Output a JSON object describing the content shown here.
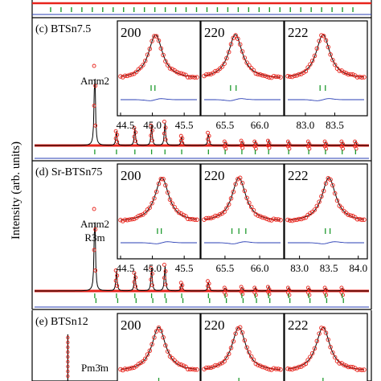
{
  "figure": {
    "ylabel": "Intensity (arb. units)"
  },
  "colors": {
    "observed": "#e8241c",
    "calculated": "#000000",
    "difference": "#2a3fb5",
    "reflection_primary": "#1f9a2e",
    "reflection_secondary": "#1f9a2e",
    "frame": "#000000"
  },
  "chart_data": [
    {
      "type": "line",
      "panel": "b",
      "label": "",
      "series": [
        {
          "name": "",
          "role": "reflections",
          "x": [
            1,
            2,
            3,
            4,
            5,
            6,
            7,
            8,
            9,
            10,
            11,
            12,
            13,
            14,
            15,
            16,
            17,
            18,
            19,
            20,
            21,
            22,
            23,
            24,
            25,
            26,
            27,
            28,
            29,
            30
          ]
        }
      ]
    },
    {
      "type": "line",
      "panel": "c",
      "label": "(c) BTSn7.5",
      "phases": [
        "Amm2"
      ],
      "main_pattern": {
        "peaks": [
          {
            "x": 0.18,
            "h": 1.0
          },
          {
            "x": 0.245,
            "h": 0.18
          },
          {
            "x": 0.3,
            "h": 0.22
          },
          {
            "x": 0.35,
            "h": 0.25
          },
          {
            "x": 0.39,
            "h": 0.3
          },
          {
            "x": 0.44,
            "h": 0.12
          },
          {
            "x": 0.52,
            "h": 0.16
          },
          {
            "x": 0.57,
            "h": 0.05
          },
          {
            "x": 0.62,
            "h": 0.06
          },
          {
            "x": 0.66,
            "h": 0.05
          },
          {
            "x": 0.7,
            "h": 0.06
          },
          {
            "x": 0.76,
            "h": 0.05
          },
          {
            "x": 0.82,
            "h": 0.05
          },
          {
            "x": 0.87,
            "h": 0.05
          },
          {
            "x": 0.92,
            "h": 0.05
          },
          {
            "x": 0.96,
            "h": 0.05
          }
        ]
      },
      "insets": [
        {
          "hkl": "200",
          "ticks": [
            "44.5",
            "45.0",
            "45.5"
          ],
          "xrange": [
            44.5,
            45.7
          ],
          "peaks": [
            45.05
          ],
          "reflections": [
            44.98,
            45.04
          ]
        },
        {
          "hkl": "220",
          "ticks": [
            "65.5",
            "66.0"
          ],
          "xrange": [
            65.2,
            66.3
          ],
          "peaks": [
            65.65
          ],
          "reflections": [
            65.58,
            65.66
          ]
        },
        {
          "hkl": "222",
          "ticks": [
            "83.0",
            "83.5"
          ],
          "xrange": [
            82.7,
            84.0
          ],
          "peaks": [
            83.3
          ],
          "reflections": [
            83.25,
            83.34
          ]
        }
      ]
    },
    {
      "type": "line",
      "panel": "d",
      "label": "(d) Sr-BTSn75",
      "phases": [
        "Amm2",
        "R3m"
      ],
      "main_pattern": {
        "peaks": [
          {
            "x": 0.18,
            "h": 1.0
          },
          {
            "x": 0.245,
            "h": 0.25
          },
          {
            "x": 0.3,
            "h": 0.22
          },
          {
            "x": 0.35,
            "h": 0.28
          },
          {
            "x": 0.39,
            "h": 0.32
          },
          {
            "x": 0.44,
            "h": 0.1
          },
          {
            "x": 0.52,
            "h": 0.12
          },
          {
            "x": 0.57,
            "h": 0.04
          },
          {
            "x": 0.62,
            "h": 0.05
          },
          {
            "x": 0.66,
            "h": 0.04
          },
          {
            "x": 0.7,
            "h": 0.05
          },
          {
            "x": 0.76,
            "h": 0.04
          },
          {
            "x": 0.82,
            "h": 0.04
          },
          {
            "x": 0.87,
            "h": 0.04
          },
          {
            "x": 0.92,
            "h": 0.04
          }
        ]
      },
      "insets": [
        {
          "hkl": "200",
          "ticks": [
            "44.5",
            "45.0",
            "45.5"
          ],
          "xrange": [
            44.5,
            45.7
          ],
          "peaks": [
            45.15
          ],
          "reflections": [
            45.08,
            45.14
          ]
        },
        {
          "hkl": "220",
          "ticks": [
            "65.5",
            "66.0"
          ],
          "xrange": [
            65.2,
            66.3
          ],
          "peaks": [
            65.7
          ],
          "reflections": [
            65.6,
            65.7,
            65.8
          ]
        },
        {
          "hkl": "222",
          "ticks": [
            "83.0",
            "83.5",
            "84.0"
          ],
          "xrange": [
            82.8,
            84.1
          ],
          "peaks": [
            83.5
          ],
          "reflections": [
            83.44,
            83.52
          ]
        }
      ]
    },
    {
      "type": "line",
      "panel": "e",
      "label": "(e) BTSn12",
      "phases": [
        "Pm3̄m"
      ],
      "main_pattern": {
        "peaks": [
          {
            "x": 0.18,
            "h": 1.0
          }
        ]
      },
      "insets": [
        {
          "hkl": "200",
          "ticks": [],
          "xrange": [
            44.5,
            45.7
          ],
          "peaks": [
            45.1
          ],
          "reflections": [
            45.1
          ]
        },
        {
          "hkl": "220",
          "ticks": [],
          "xrange": [
            65.2,
            66.3
          ],
          "peaks": [
            65.7
          ],
          "reflections": [
            65.7
          ]
        },
        {
          "hkl": "222",
          "ticks": [],
          "xrange": [
            82.8,
            84.1
          ],
          "peaks": [
            83.4
          ],
          "reflections": [
            83.4
          ]
        }
      ]
    }
  ]
}
